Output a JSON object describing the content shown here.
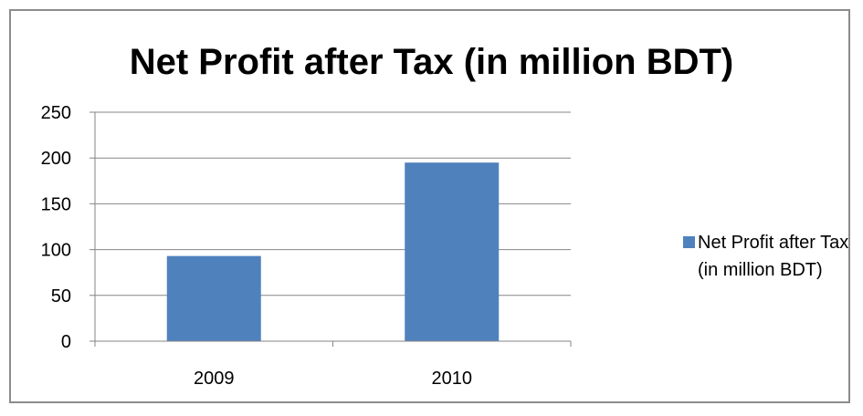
{
  "colors": {
    "bar": "#4f81bd",
    "grid": "#868686",
    "axis": "#868686",
    "text": "#000000"
  },
  "chart_data": {
    "type": "bar",
    "title": "Net Profit after Tax (in million BDT)",
    "xlabel": "",
    "ylabel": "",
    "categories": [
      "2009",
      "2010"
    ],
    "series": [
      {
        "name": "Net Profit after Tax (in million BDT)",
        "values": [
          93,
          195
        ]
      }
    ],
    "ylim": [
      0,
      250
    ],
    "yticks": [
      0,
      50,
      100,
      150,
      200,
      250
    ],
    "ytick_labels": [
      "0",
      "50",
      "100",
      "150",
      "200",
      "250"
    ],
    "grid": true,
    "legend_position": "right"
  }
}
